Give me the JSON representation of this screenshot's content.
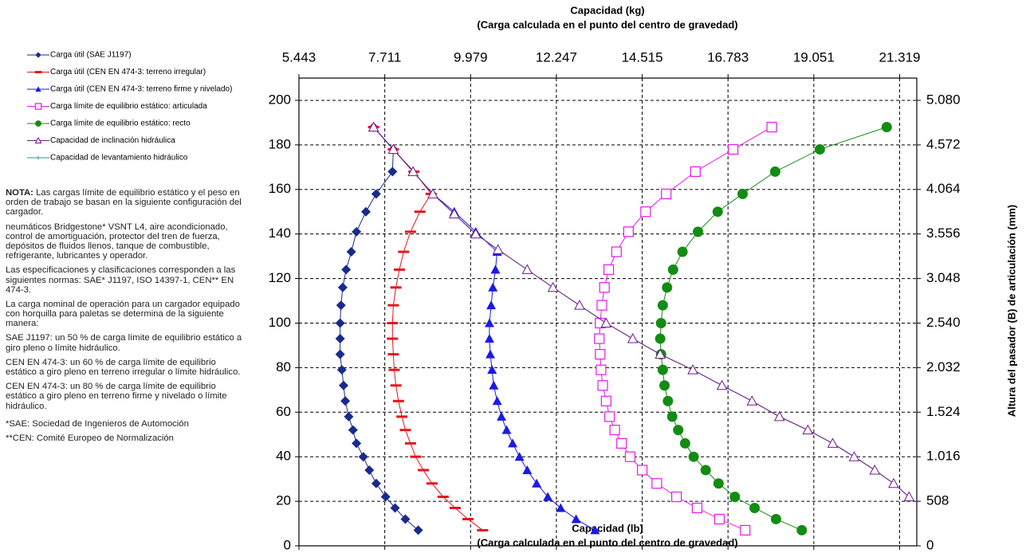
{
  "chart_data": {
    "type": "line",
    "title": "Capacidad (kg)",
    "subtitle": "(Carga calculada en el punto del centro de gravedad)",
    "x_label": "Capacidad (lb)",
    "x_sublabel": "(Carga calculada en el punto del centro de gravedad)",
    "y2_label": "Altura del pasador (B) de articulación (mm)",
    "xlim": [
      12000,
      48000
    ],
    "xticks": [
      12000,
      17000,
      22000,
      27000,
      32000,
      37000,
      42000,
      47000
    ],
    "x2lim": [
      5443,
      21772
    ],
    "x2ticks": [
      {
        "value": 5443,
        "label": "5.443"
      },
      {
        "value": 7711,
        "label": "7.711"
      },
      {
        "value": 9979,
        "label": "9.979"
      },
      {
        "value": 12247,
        "label": "12.247"
      },
      {
        "value": 14515,
        "label": "14.515"
      },
      {
        "value": 16783,
        "label": "16.783"
      },
      {
        "value": 19051,
        "label": "19.051"
      },
      {
        "value": 21319,
        "label": "21.319"
      }
    ],
    "ylim": [
      0,
      210
    ],
    "yticks": [
      0,
      20,
      40,
      60,
      80,
      100,
      120,
      140,
      160,
      180,
      200
    ],
    "y2lim": [
      0,
      5334
    ],
    "y2ticks": [
      0,
      508,
      {
        "value": 1016,
        "label": "1.016"
      },
      {
        "value": 1524,
        "label": "1.524"
      },
      {
        "value": 2032,
        "label": "2.032"
      },
      {
        "value": 2540,
        "label": "2.540"
      },
      {
        "value": 3048,
        "label": "3.048"
      },
      {
        "value": 3556,
        "label": "3.556"
      },
      {
        "value": 4064,
        "label": "4.064"
      },
      {
        "value": 4572,
        "label": "4.572"
      },
      {
        "value": 5080,
        "label": "5.080"
      }
    ],
    "grid": true,
    "legend": "left",
    "series": [
      {
        "name": "Carga útil (SAE J1197)",
        "color": "#1a2a8c",
        "marker": "diamond",
        "x": [
          16350,
          17500,
          17450,
          16500,
          15900,
          15350,
          15050,
          14750,
          14550,
          14450,
          14400,
          14400,
          14400,
          14500,
          14600,
          14700,
          14900,
          15150,
          15350,
          15750,
          16100,
          16500,
          17050,
          17600,
          18200,
          18950
        ],
        "values": [
          188,
          178,
          168,
          158,
          150,
          141,
          132,
          124,
          116,
          108,
          100,
          93,
          86,
          79,
          72,
          65,
          58,
          52,
          46,
          40,
          34,
          28,
          22,
          17,
          12,
          7
        ]
      },
      {
        "name": "Carga útil (CEN EN 474-3: terreno irregular)",
        "color": "#e8141e",
        "marker": "dash",
        "x": [
          16350,
          17500,
          18700,
          19700,
          19050,
          18500,
          18100,
          17850,
          17650,
          17500,
          17450,
          17450,
          17500,
          17550,
          17650,
          17800,
          18000,
          18200,
          18500,
          18800,
          19250,
          19750,
          20400,
          21100,
          21850,
          22700
        ],
        "values": [
          188,
          178,
          168,
          158,
          150,
          141,
          132,
          124,
          116,
          108,
          100,
          93,
          86,
          79,
          72,
          65,
          58,
          52,
          46,
          40,
          34,
          28,
          22,
          17,
          12,
          7
        ]
      },
      {
        "name": "Carga útil (CEN EN 474-3: terreno firme y nivelado)",
        "color": "#1a1ae6",
        "marker": "triangle",
        "x": [
          16350,
          17500,
          18650,
          19800,
          21050,
          22300,
          23550,
          23450,
          23300,
          23200,
          23100,
          23100,
          23150,
          23250,
          23350,
          23550,
          23800,
          24100,
          24450,
          24850,
          25300,
          25850,
          26500,
          27250,
          28150,
          29250
        ],
        "values": [
          188,
          178,
          168,
          158,
          150,
          141,
          132,
          124,
          116,
          108,
          100,
          93,
          86,
          79,
          72,
          65,
          58,
          52,
          46,
          40,
          34,
          28,
          22,
          17,
          12,
          7
        ]
      },
      {
        "name": "Carga límite de equilibrio estático: articulada",
        "color": "#e619e6",
        "marker": "square",
        "x": [
          39550,
          37300,
          35100,
          33400,
          32200,
          31200,
          30500,
          30050,
          29800,
          29650,
          29550,
          29500,
          29550,
          29600,
          29700,
          29900,
          30100,
          30400,
          30800,
          31300,
          32000,
          32850,
          34000,
          35200,
          36500,
          38000
        ],
        "values": [
          188,
          178,
          168,
          158,
          150,
          141,
          132,
          124,
          116,
          108,
          100,
          93,
          86,
          79,
          72,
          65,
          58,
          52,
          46,
          40,
          34,
          28,
          22,
          17,
          12,
          7
        ]
      },
      {
        "name": "Carga límite de equilibrio estático: recto",
        "color": "#138c13",
        "marker": "circle",
        "x": [
          46250,
          42350,
          39750,
          37850,
          36400,
          35250,
          34350,
          33800,
          33450,
          33200,
          33100,
          33050,
          33100,
          33200,
          33300,
          33500,
          33750,
          34100,
          34500,
          35000,
          35700,
          36450,
          37400,
          38550,
          39800,
          41300
        ],
        "values": [
          188,
          178,
          168,
          158,
          150,
          141,
          132,
          124,
          116,
          108,
          100,
          93,
          86,
          79,
          72,
          65,
          58,
          52,
          46,
          40,
          34,
          28,
          22,
          17,
          12,
          7
        ]
      },
      {
        "name": "Capacidad de levantamiento hidráulico",
        "color": "#2a9a8a",
        "marker": "plus",
        "x": [
          16350,
          17500,
          18650,
          19800,
          21050,
          22300,
          23600,
          25300,
          26800,
          28350,
          29900,
          31450,
          33050,
          34950,
          36650,
          38400,
          40000,
          41650,
          43100,
          44350,
          45550,
          46650,
          47550
        ],
        "values": [
          188,
          178,
          168,
          158,
          149,
          140,
          133,
          124,
          116,
          108,
          100,
          93,
          86,
          79,
          72,
          65,
          58,
          52,
          46,
          40,
          34,
          28,
          22
        ]
      },
      {
        "name": "Capacidad de inclinación hidráulica",
        "color": "#6e1a8c",
        "marker": "opentriangle",
        "x": [
          16350,
          17500,
          18650,
          19800,
          21050,
          22300,
          23600,
          25300,
          26800,
          28350,
          29900,
          31450,
          33050,
          34950,
          36650,
          38400,
          40000,
          41650,
          43100,
          44350,
          45550,
          46650,
          47550
        ],
        "values": [
          188,
          178,
          168,
          158,
          149,
          140,
          133,
          124,
          116,
          108,
          100,
          93,
          86,
          79,
          72,
          65,
          58,
          52,
          46,
          40,
          34,
          28,
          22
        ]
      }
    ],
    "legend_order": [
      0,
      1,
      2,
      3,
      4,
      6,
      5
    ]
  },
  "notes": [
    {
      "label": "NOTA:",
      "text": "Las cargas límite de equilibrio estático y el peso en orden de trabajo se basan en la siguiente configuración del cargador."
    },
    {
      "text": "neumáticos Bridgestone* VSNT L4, aire acondicionado, control de amortiguación, protector del tren de fuerza, depósitos de fluidos llenos, tanque de combustible, refrigerante, lubricantes y operador."
    },
    {
      "text": "Las especificaciones y clasificaciones corresponden a las siguientes normas: SAE* J1197, ISO 14397-1, CEN** EN 474-3."
    },
    {
      "text": "La carga nominal de operación para un cargador equipado con horquilla para paletas se determina de la siguiente manera:"
    },
    {
      "text": "SAE J1197: un 50 % de carga límite de equilibrio estático a giro pleno o límite hidráulico."
    },
    {
      "text": "CEN EN 474-3: un 60 % de carga límite de equilibrio estático a giro pleno en terreno irregular o límite hidráulico."
    },
    {
      "text": "CEN EN 474-3: un 80 % de carga límite de equilibrio estático a giro pleno en terreno firme y nivelado o límite hidráulico."
    },
    {
      "text": "*SAE: Sociedad de Ingenieros de Automoción"
    },
    {
      "text": "**CEN: Comité Europeo de Normalización"
    }
  ]
}
